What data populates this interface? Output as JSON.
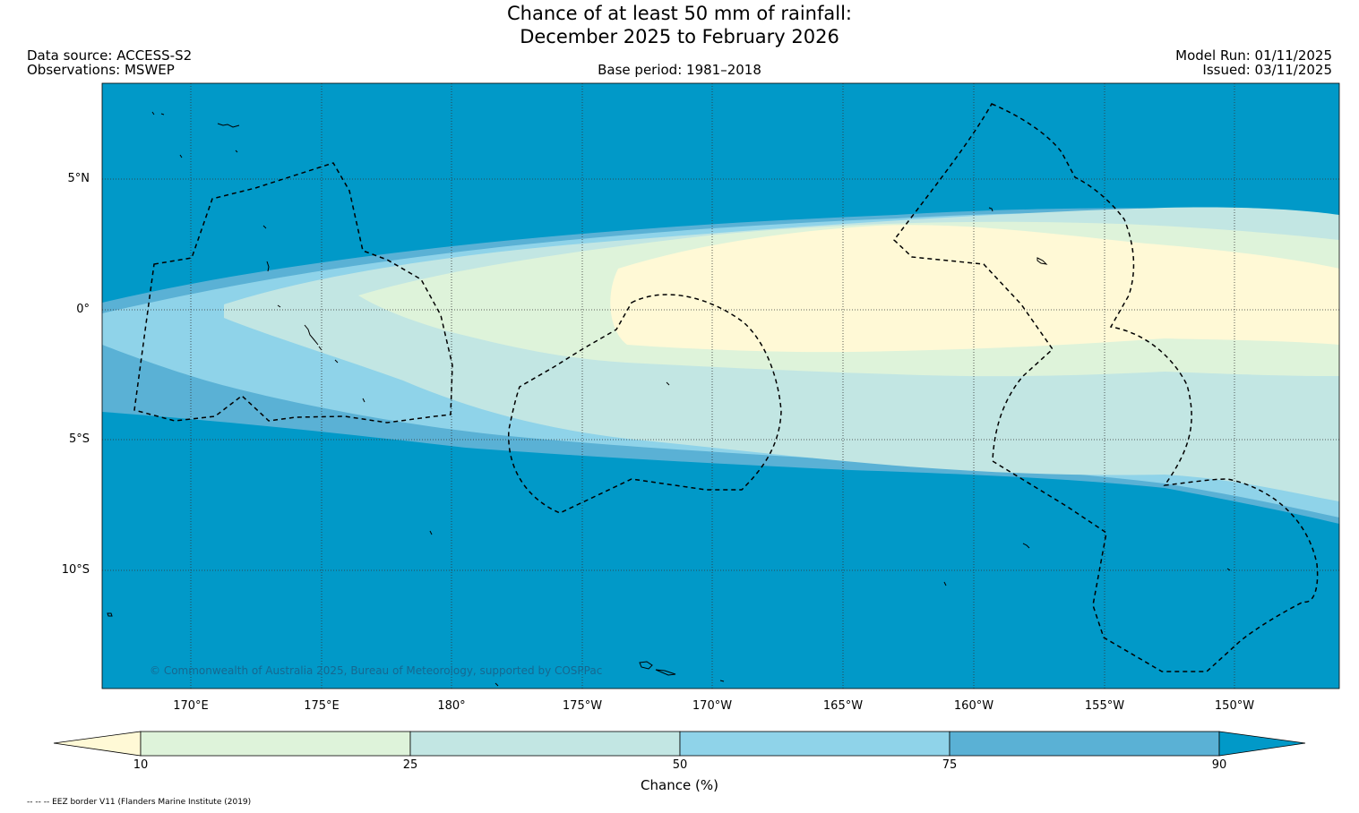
{
  "title": {
    "line1": "Chance of at least 50 mm of rainfall:",
    "line2": "December 2025 to February 2026"
  },
  "header": {
    "data_source": "Data source: ACCESS-S2",
    "observations": "Observations: MSWEP",
    "base_period": "Base period: 1981–2018",
    "model_run": "Model Run: 01/11/2025",
    "issued": "Issued: 03/11/2025"
  },
  "axes": {
    "lat_labels": [
      "5°N",
      "0°",
      "5°S",
      "10°S"
    ],
    "lon_labels": [
      "170°E",
      "175°E",
      "180°",
      "175°W",
      "170°W",
      "165°W",
      "160°W",
      "155°W",
      "150°W"
    ]
  },
  "colorbar": {
    "ticks": [
      "10",
      "25",
      "50",
      "75",
      "90"
    ],
    "title": "Chance (%)",
    "colors": [
      "#fff9d6",
      "#def3da",
      "#c2e6e3",
      "#8fd3e9",
      "#5ab1d5",
      "#0199c8"
    ]
  },
  "map": {
    "ocean_color": "#0199c8",
    "copyright": "© Commonwealth of Australia 2025, Bureau of Meteorology, supported by COSPPac"
  },
  "footnote": "-- -- -- EEZ border V11 (Flanders Marine Institute (2019)"
}
